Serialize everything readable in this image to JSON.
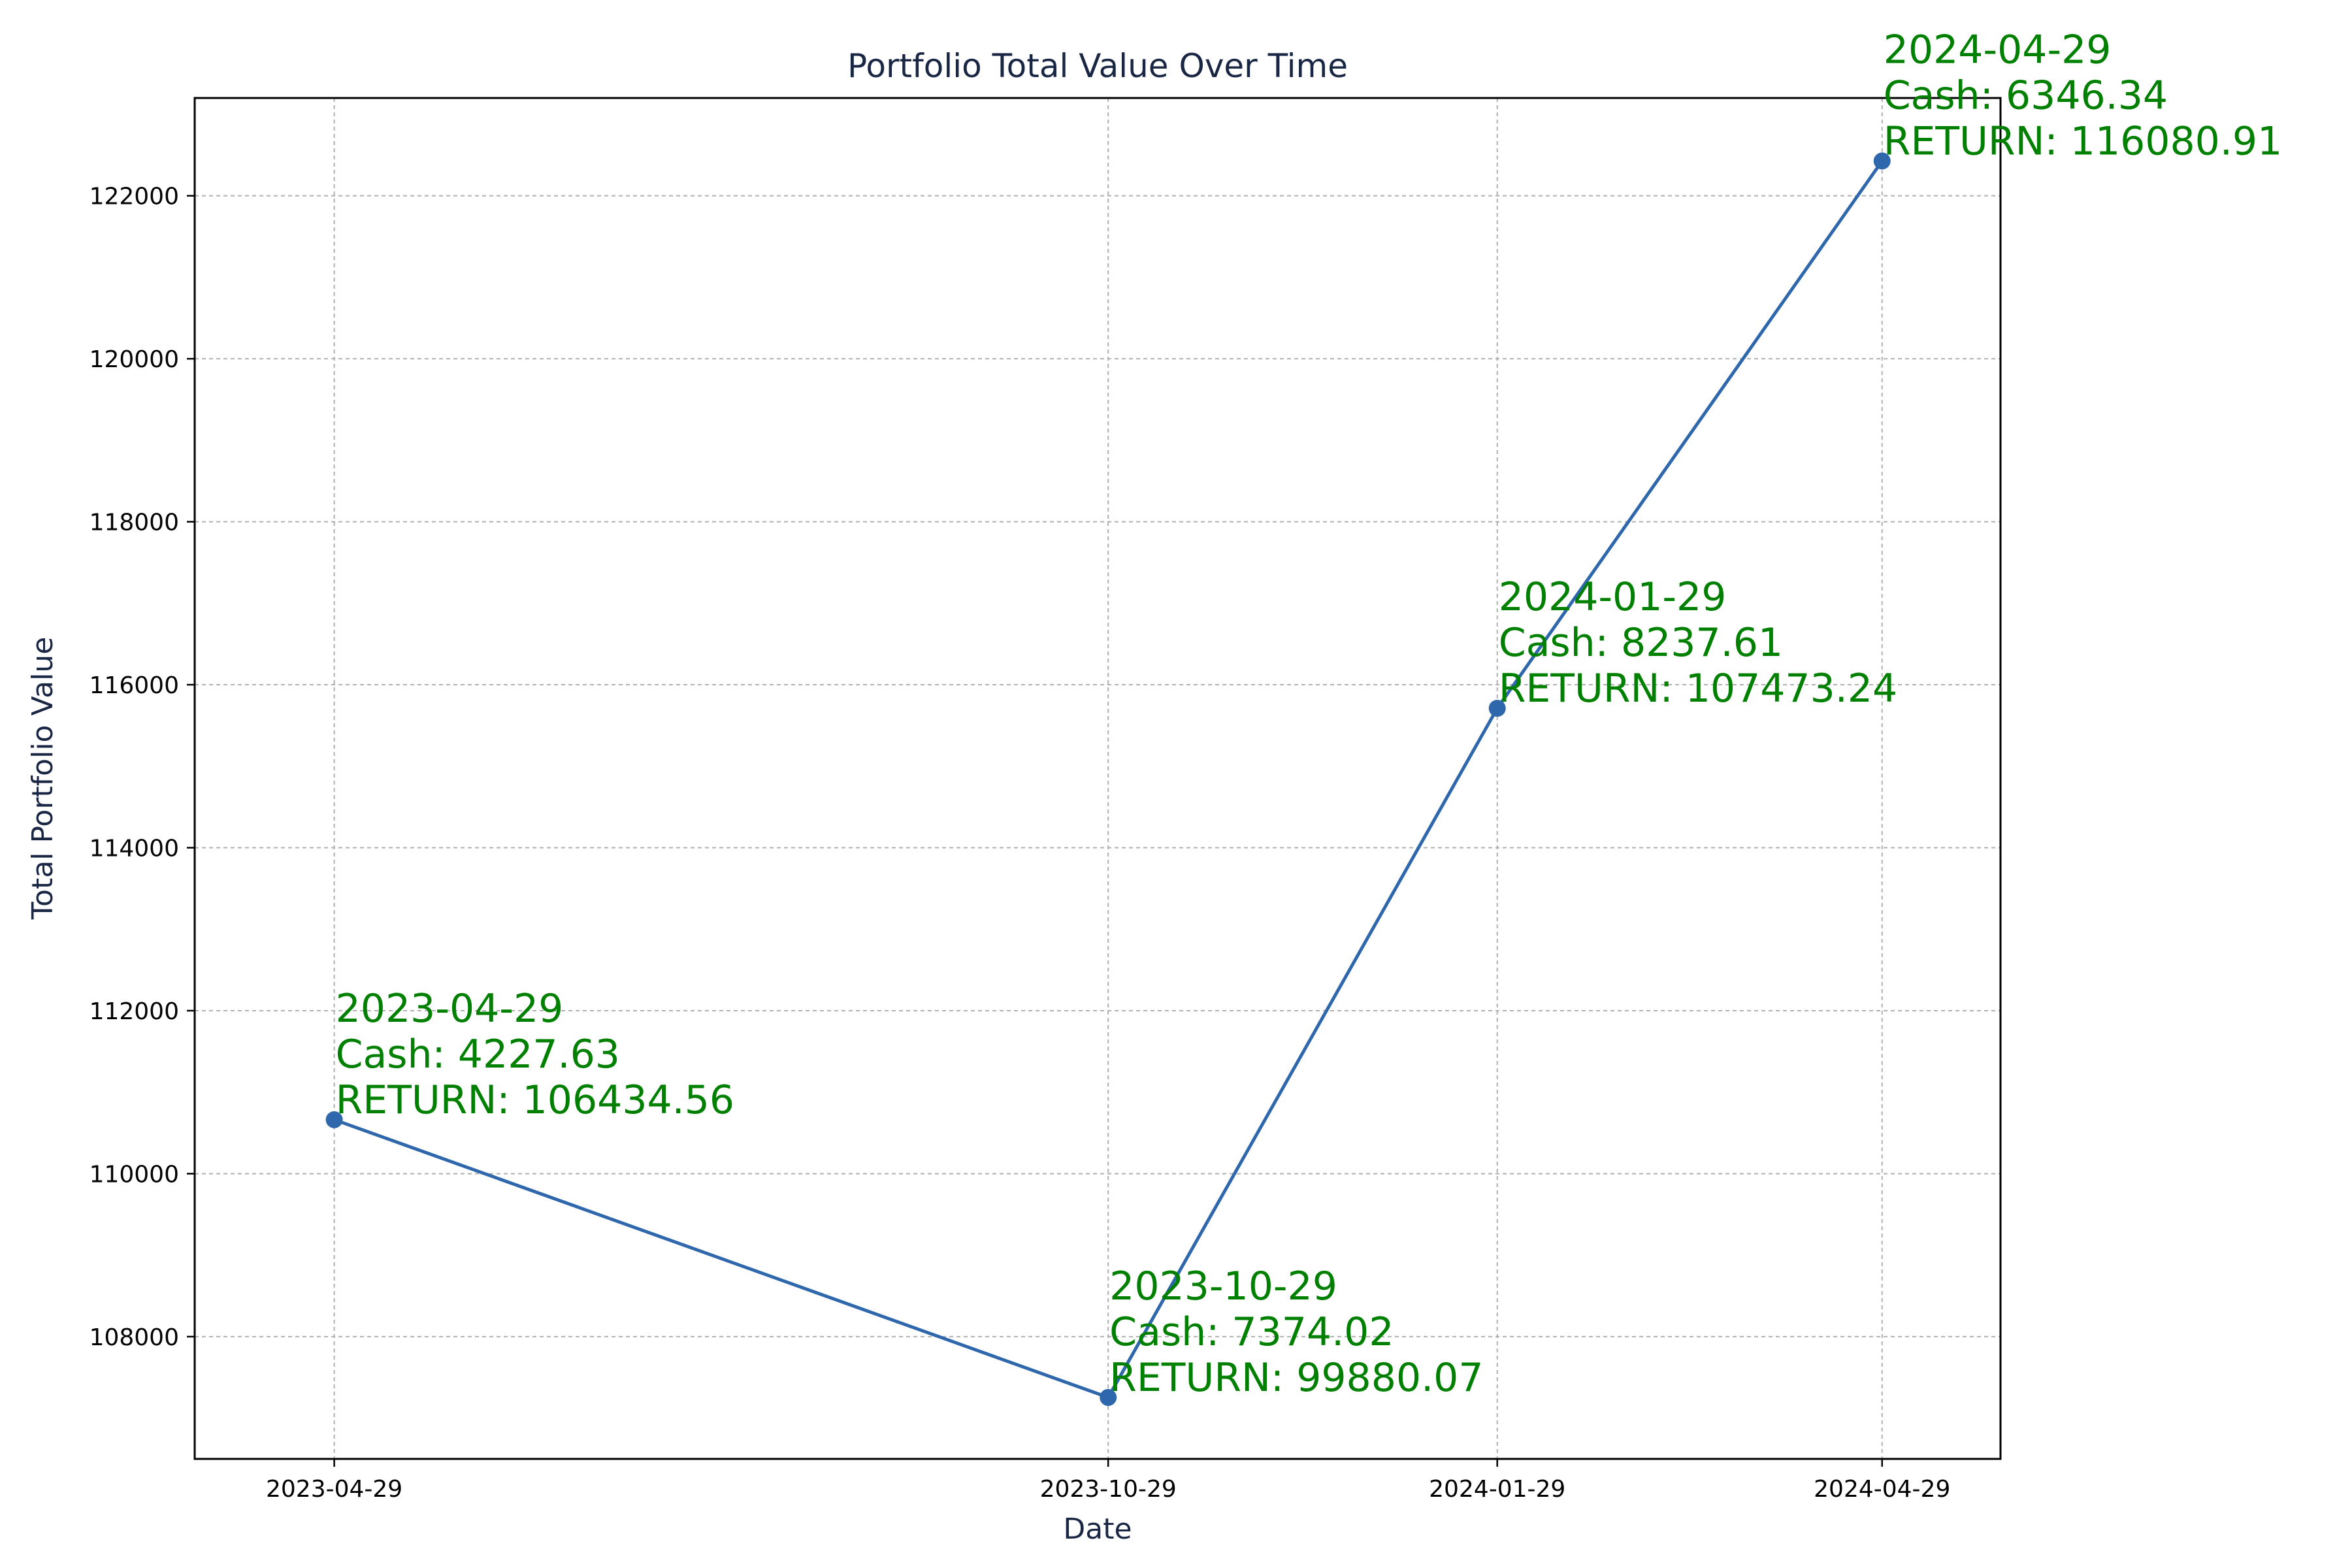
{
  "chart_data": {
    "type": "line",
    "title": "Portfolio Total Value Over Time",
    "xlabel": "Date",
    "ylabel": "Total Portfolio Value",
    "x": [
      "2023-04-29",
      "2023-10-29",
      "2024-01-29",
      "2024-04-29"
    ],
    "xlim": [
      "2023-03-27",
      "2024-05-27"
    ],
    "ylim": [
      106500,
      123200
    ],
    "yticks": [
      108000,
      110000,
      112000,
      114000,
      116000,
      118000,
      120000,
      122000
    ],
    "grid": true,
    "series": [
      {
        "color": "#2f67ad",
        "marker": "circle",
        "values": [
          110662.19,
          107254.09,
          115710.85,
          122427.25
        ]
      }
    ],
    "annotations": [
      {
        "date": "2023-04-29",
        "cash": "Cash: 4227.63",
        "ret": "RETURN: 106434.56"
      },
      {
        "date": "2023-10-29",
        "cash": "Cash: 7374.02",
        "ret": "RETURN: 99880.07"
      },
      {
        "date": "2024-01-29",
        "cash": "Cash: 8237.61",
        "ret": "RETURN: 107473.24"
      },
      {
        "date": "2024-04-29",
        "cash": "Cash: 6346.34",
        "ret": "RETURN: 116080.91"
      }
    ],
    "annotation_color": "#008000"
  }
}
